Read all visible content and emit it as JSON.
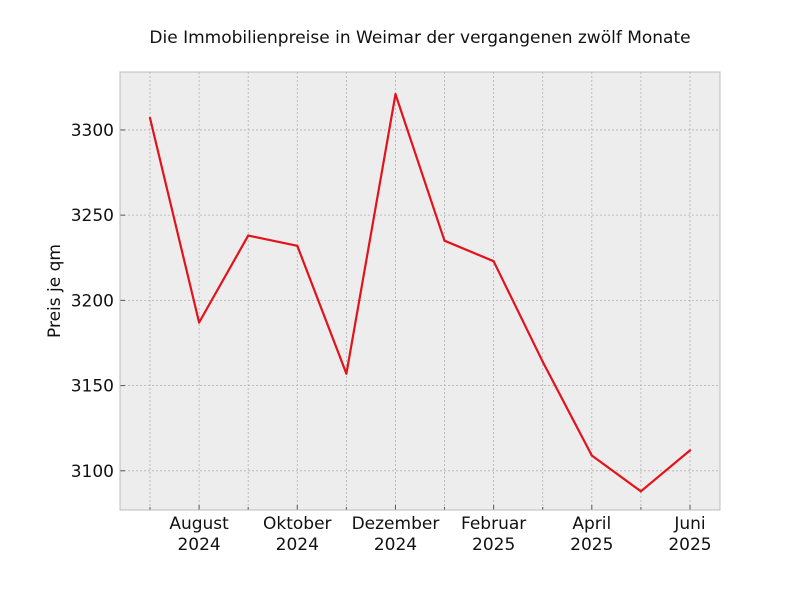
{
  "chart_data": {
    "type": "line",
    "title": "Die Immobilienpreise in Weimar der vergangenen zwölf Monate",
    "xlabel": "",
    "ylabel": "Preis je qm",
    "x": [
      "2024-07",
      "2024-08",
      "2024-09",
      "2024-10",
      "2024-11",
      "2024-12",
      "2025-01",
      "2025-02",
      "2025-03",
      "2025-04",
      "2025-05",
      "2025-06"
    ],
    "series": [
      {
        "values": [
          3307,
          3187,
          3238,
          3232,
          3157,
          3321,
          3235,
          3223,
          3164,
          3109,
          3088,
          3112
        ]
      }
    ],
    "x_ticks": [
      {
        "x": "2024-08",
        "line1": "August",
        "line2": "2024"
      },
      {
        "x": "2024-10",
        "line1": "Oktober",
        "line2": "2024"
      },
      {
        "x": "2024-12",
        "line1": "Dezember",
        "line2": "2024"
      },
      {
        "x": "2025-02",
        "line1": "Februar",
        "line2": "2025"
      },
      {
        "x": "2025-04",
        "line1": "April",
        "line2": "2025"
      },
      {
        "x": "2025-06",
        "line1": "Juni",
        "line2": "2025"
      }
    ],
    "y_ticks": [
      3100,
      3150,
      3200,
      3250,
      3300
    ],
    "ylim": [
      3077,
      3334
    ],
    "grid": true,
    "colors": {
      "line": "#e3121b",
      "plot_background": "#ededed",
      "frame": "#bcbcbc"
    }
  }
}
